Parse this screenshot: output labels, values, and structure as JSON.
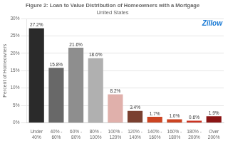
{
  "chart_data": {
    "type": "bar",
    "title": "Figure 2: Loan to Value Distribution of Homeowners with a Mortgage",
    "subtitle": "United States",
    "annotations": [
      "Zillow"
    ],
    "ylabel": "Percent of Homeowners",
    "categories": [
      "Under\n40%",
      "40% -\n60%",
      "60% -\n80%",
      "80% -\n100%",
      "100% -\n120%",
      "120% -\n140%",
      "140% -\n160%",
      "160% -\n180%",
      "180% -\n200%",
      "Over\n200%"
    ],
    "values": [
      27.2,
      15.8,
      21.6,
      18.6,
      8.2,
      3.4,
      1.7,
      1.0,
      0.6,
      1.9
    ],
    "value_labels": [
      "27.2%",
      "15.8%",
      "21.6%",
      "18.6%",
      "8.2%",
      "3.4%",
      "1.7%",
      "1.0%",
      "0.6%",
      "1.9%"
    ],
    "data_labels": true,
    "colors": [
      "#2a2a2a",
      "#686868",
      "#8e8e8e",
      "#b0b0b0",
      "#e0b0ab",
      "#7a4030",
      "#cc4422",
      "#cc4422",
      "#cc3322",
      "#8b1515"
    ],
    "ylim": [
      0,
      30
    ],
    "yticks": [
      {
        "value": 0,
        "label": "0%"
      },
      {
        "value": 5,
        "label": "5%"
      },
      {
        "value": 10,
        "label": "10%"
      },
      {
        "value": 15,
        "label": "15%"
      },
      {
        "value": 20,
        "label": "20%"
      },
      {
        "value": 25,
        "label": "25%"
      },
      {
        "value": 30,
        "label": "30%"
      }
    ],
    "grid": true
  }
}
